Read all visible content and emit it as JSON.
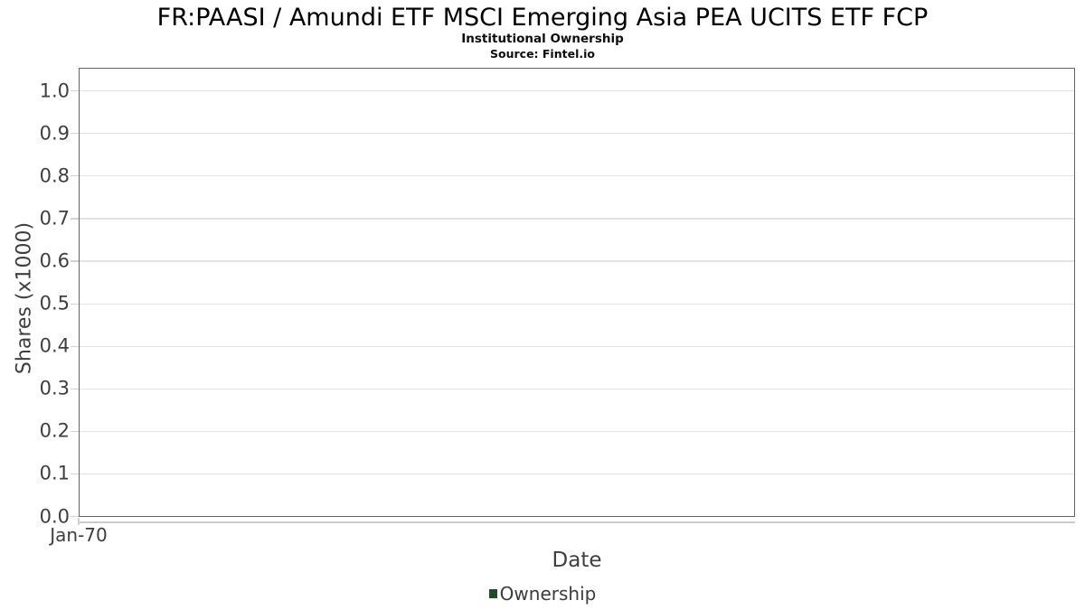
{
  "chart_data": {
    "type": "line",
    "title": "FR:PAASI / Amundi ETF MSCI Emerging Asia PEA UCITS ETF FCP",
    "subtitle": "Institutional Ownership",
    "source": "Source: Fintel.io",
    "xlabel": "Date",
    "ylabel": "Shares (x1000)",
    "ylim": [
      0.0,
      1.0
    ],
    "ytick_values": [
      0.0,
      0.1,
      0.2,
      0.3,
      0.4,
      0.5,
      0.6,
      0.7,
      0.8,
      0.9,
      1.0
    ],
    "ytick_labels": [
      "0.0",
      "0.1",
      "0.2",
      "0.3",
      "0.4",
      "0.5",
      "0.6",
      "0.7",
      "0.8",
      "0.9",
      "1.0"
    ],
    "xticks": [
      {
        "label": "Jan-70",
        "frac": 0.0
      }
    ],
    "grid": true,
    "legend_position": "bottom",
    "series": [
      {
        "name": "Ownership",
        "color": "#1e4d2b",
        "marker": "square",
        "x": [],
        "y": []
      }
    ]
  }
}
